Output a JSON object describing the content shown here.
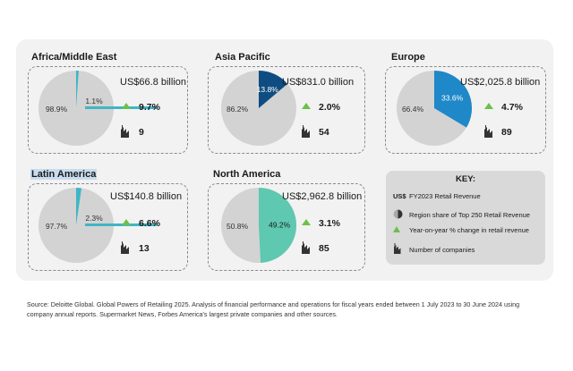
{
  "chart_data": [
    {
      "type": "pie",
      "title": "Africa/Middle East",
      "amount": "US$66.8 billion",
      "share_label": "1.1%",
      "rest_label": "98.9%",
      "share": 1.1,
      "growth": "9.7%",
      "companies": "9",
      "slice_color": "#3fb6c6"
    },
    {
      "type": "pie",
      "title": "Asia Pacific",
      "amount": "US$831.0 billion",
      "share_label": "13.8%",
      "rest_label": "86.2%",
      "share": 13.8,
      "growth": "2.0%",
      "companies": "54",
      "slice_color": "#0f4c81"
    },
    {
      "type": "pie",
      "title": "Europe",
      "amount": "US$2,025.8 billion",
      "share_label": "33.6%",
      "rest_label": "66.4%",
      "share": 33.6,
      "growth": "4.7%",
      "companies": "89",
      "slice_color": "#1e88c8"
    },
    {
      "type": "pie",
      "title": "Latin America",
      "amount": "US$140.8 billion",
      "share_label": "2.3%",
      "rest_label": "97.7%",
      "share": 2.3,
      "growth": "6.6%",
      "companies": "13",
      "slice_color": "#3fb6c6"
    },
    {
      "type": "pie",
      "title": "North America",
      "amount": "US$2,962.8 billion",
      "share_label": "49.2%",
      "rest_label": "50.8%",
      "share": 49.2,
      "growth": "3.1%",
      "companies": "85",
      "slice_color": "#5ec8b0"
    }
  ],
  "colors": {
    "pie_rest": "#d3d3d3",
    "growth_arrow": "#6cc04a"
  },
  "key": {
    "title": "KEY:",
    "items": [
      {
        "symbol": "US$",
        "label": "FY2023 Retail Revenue"
      },
      {
        "symbol": "half-circle-icon",
        "label": "Region share of Top 250 Retail Revenue"
      },
      {
        "symbol": "triangle-up-icon",
        "label": "Year-on-year % change in retail revenue"
      },
      {
        "symbol": "building-icon",
        "label": "Number of companies"
      }
    ]
  },
  "source": "Source: Deloitte Global. Global Powers of Retailing 2025. Analysis of financial performance and operations for fiscal years ended between 1 July 2023 to 30 June 2024 using company annual reports. Supermarket News, Forbes America's largest private companies and other sources."
}
